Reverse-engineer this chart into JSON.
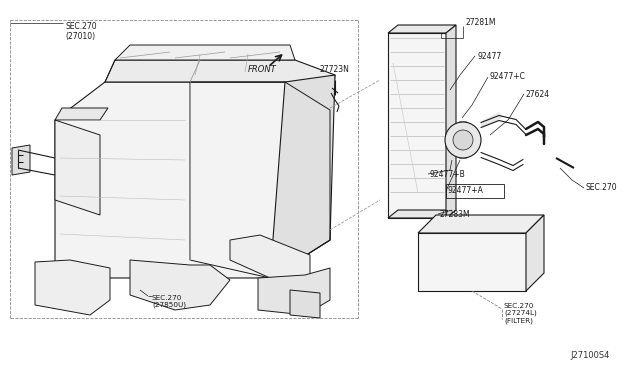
{
  "bg_color": "#ffffff",
  "line_color": "#1a1a1a",
  "fig_width": 6.4,
  "fig_height": 3.72,
  "dpi": 100,
  "labels": {
    "sec270_top": "SEC.270\n(27010)",
    "sec270_bottom_left": "SEC.270\n(27850U)",
    "sec270_bottom_right": "SEC.270\n(27274L)\n(FILTER)",
    "sec270_right": "SEC.270",
    "front": "FRONT",
    "part_27723N": "27723N",
    "part_27281M": "27281M",
    "part_92477": "92477",
    "part_92477C": "92477+C",
    "part_27624": "27624",
    "part_92477B": "92477+B",
    "part_92477A": "92477+A",
    "part_27283M": "27283M",
    "diagram_id": "J27100S4"
  },
  "colors": {
    "body_fill": "#f8f8f8",
    "face_fill": "#f0f0f0",
    "side_fill": "#e8e8e8",
    "dark_fill": "#d0d0d0",
    "dashed_line": "#888888"
  }
}
